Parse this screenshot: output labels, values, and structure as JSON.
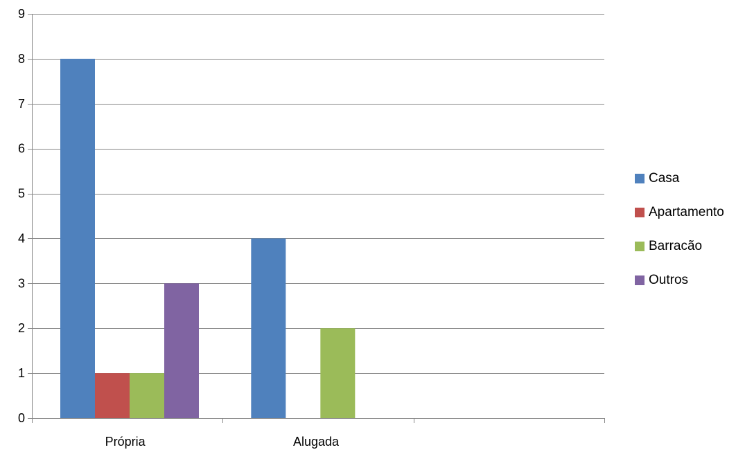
{
  "chart_data": {
    "type": "bar",
    "categories": [
      "Própria",
      "Alugada",
      ""
    ],
    "series": [
      {
        "name": "Casa",
        "color": "#4F81BD",
        "values": [
          8,
          4,
          0
        ]
      },
      {
        "name": "Apartamento",
        "color": "#C0504D",
        "values": [
          1,
          0,
          0
        ]
      },
      {
        "name": "Barracão",
        "color": "#9BBB59",
        "values": [
          1,
          2,
          0
        ]
      },
      {
        "name": "Outros",
        "color": "#8064A2",
        "values": [
          3,
          0,
          0
        ]
      }
    ],
    "title": "",
    "xlabel": "",
    "ylabel": "",
    "ylim": [
      0,
      9
    ],
    "yticks": [
      0,
      1,
      2,
      3,
      4,
      5,
      6,
      7,
      8,
      9
    ],
    "grid": true,
    "legend_position": "right"
  }
}
